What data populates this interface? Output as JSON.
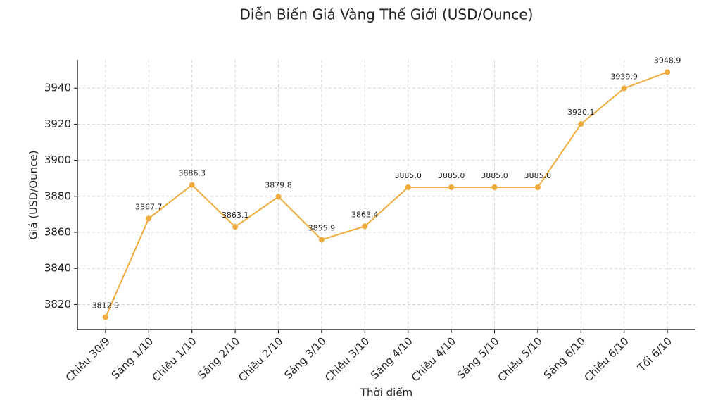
{
  "chart_data": {
    "type": "line",
    "title": "Diễn Biến Giá Vàng Thế Giới (USD/Ounce)",
    "x_label": "Thời điểm",
    "y_label": "Giá (USD/Ounce)",
    "categories": [
      "Chiều 30/9",
      "Sáng 1/10",
      "Chiều 1/10",
      "Sáng 2/10",
      "Chiều 2/10",
      "Sáng 3/10",
      "Chiều 3/10",
      "Sáng 4/10",
      "Chiều 4/10",
      "Sáng 5/10",
      "Chiều 5/10",
      "Sáng 6/10",
      "Chiều 6/10",
      "Tối 6/10"
    ],
    "values": [
      3812.9,
      3867.7,
      3886.3,
      3863.1,
      3879.8,
      3855.9,
      3863.4,
      3885,
      3885,
      3885,
      3885,
      3920.1,
      3939.9,
      3948.9
    ],
    "value_labels": [
      "3812.9",
      "3867.7",
      "3886.3",
      "3863.1",
      "3879.8",
      "3855.9",
      "3863.4",
      "3885.0",
      "3885.0",
      "3885.0",
      "3885.0",
      "3920.1",
      "3939.9",
      "3948.9"
    ],
    "color": "#f0ab3e",
    "ylim": [
      3806.1,
      3955.7
    ],
    "yticks": [
      3820,
      3840,
      3860,
      3880,
      3900,
      3920,
      3940
    ],
    "grid": true
  }
}
